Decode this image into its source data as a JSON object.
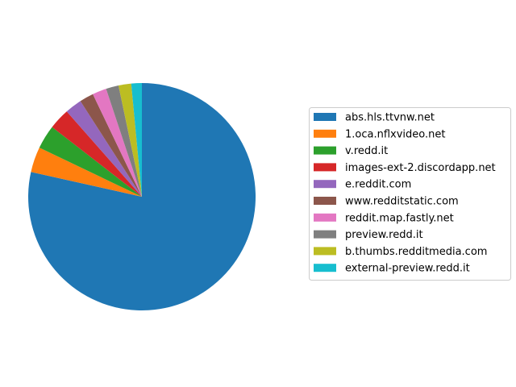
{
  "chart_data": {
    "type": "pie",
    "title": "",
    "legend_position": "right",
    "start_angle_deg": 90,
    "direction": "clockwise",
    "slices": [
      {
        "label": "abs.hls.ttvnw.net",
        "value": 78.5,
        "color": "#1f77b4"
      },
      {
        "label": "1.oca.nflxvideo.net",
        "value": 3.6,
        "color": "#ff7f0e"
      },
      {
        "label": "v.redd.it",
        "value": 3.4,
        "color": "#2ca02c"
      },
      {
        "label": "images-ext-2.discordapp.net",
        "value": 3.0,
        "color": "#d62728"
      },
      {
        "label": "e.reddit.com",
        "value": 2.4,
        "color": "#9467bd"
      },
      {
        "label": "www.redditstatic.com",
        "value": 2.0,
        "color": "#8c564b"
      },
      {
        "label": "reddit.map.fastly.net",
        "value": 2.0,
        "color": "#e377c2"
      },
      {
        "label": "preview.redd.it",
        "value": 1.8,
        "color": "#7f7f7f"
      },
      {
        "label": "b.thumbs.redditmedia.com",
        "value": 1.8,
        "color": "#bcbd22"
      },
      {
        "label": "external-preview.redd.it",
        "value": 1.5,
        "color": "#17becf"
      }
    ]
  }
}
